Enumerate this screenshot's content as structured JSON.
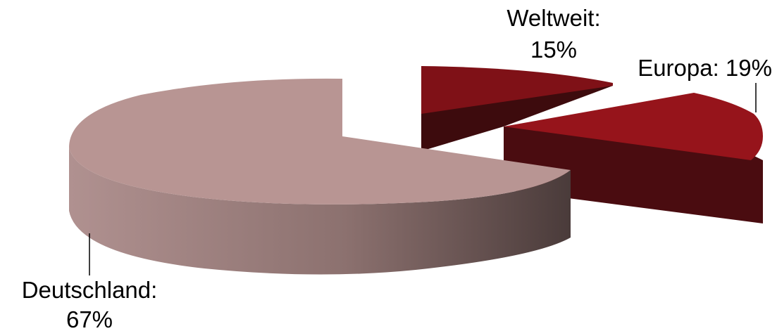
{
  "chart_data": {
    "type": "pie",
    "style": "3d-exploded",
    "categories": [
      "Weltweit",
      "Europa",
      "Deutschland"
    ],
    "values": [
      15,
      19,
      67
    ],
    "labels": [
      "Weltweit:",
      "Europa: 19%",
      "Deutschland:"
    ],
    "value_labels": [
      "15%",
      "",
      "67%"
    ],
    "legend": "none",
    "colors": [
      "#7f1117",
      "#96141b",
      "#b89593"
    ]
  }
}
